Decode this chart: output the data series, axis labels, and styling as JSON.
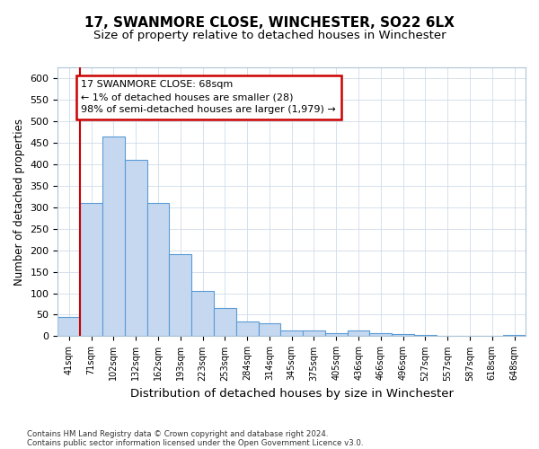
{
  "title": "17, SWANMORE CLOSE, WINCHESTER, SO22 6LX",
  "subtitle": "Size of property relative to detached houses in Winchester",
  "xlabel": "Distribution of detached houses by size in Winchester",
  "ylabel": "Number of detached properties",
  "bar_labels": [
    "41sqm",
    "71sqm",
    "102sqm",
    "132sqm",
    "162sqm",
    "193sqm",
    "223sqm",
    "253sqm",
    "284sqm",
    "314sqm",
    "345sqm",
    "375sqm",
    "405sqm",
    "436sqm",
    "466sqm",
    "496sqm",
    "527sqm",
    "557sqm",
    "587sqm",
    "618sqm",
    "648sqm"
  ],
  "bar_values": [
    45,
    310,
    465,
    410,
    310,
    190,
    105,
    65,
    35,
    30,
    14,
    14,
    8,
    14,
    8,
    5,
    3,
    0,
    0,
    0,
    2
  ],
  "bar_color": "#c5d8f0",
  "bar_edge_color": "#5b9bd5",
  "annotation_line1": "17 SWANMORE CLOSE: 68sqm",
  "annotation_line2": "← 1% of detached houses are smaller (28)",
  "annotation_line3": "98% of semi-detached houses are larger (1,979) →",
  "annotation_box_color": "#ffffff",
  "annotation_box_edge_color": "#cc0000",
  "ylim": [
    0,
    625
  ],
  "yticks": [
    0,
    50,
    100,
    150,
    200,
    250,
    300,
    350,
    400,
    450,
    500,
    550,
    600
  ],
  "footer_line1": "Contains HM Land Registry data © Crown copyright and database right 2024.",
  "footer_line2": "Contains public sector information licensed under the Open Government Licence v3.0.",
  "bg_color": "#ffffff",
  "plot_bg_color": "#ffffff",
  "grid_color": "#d0dce8",
  "vline_color": "#cc0000",
  "title_fontsize": 11,
  "subtitle_fontsize": 9.5,
  "xlabel_fontsize": 9.5,
  "ylabel_fontsize": 8.5
}
